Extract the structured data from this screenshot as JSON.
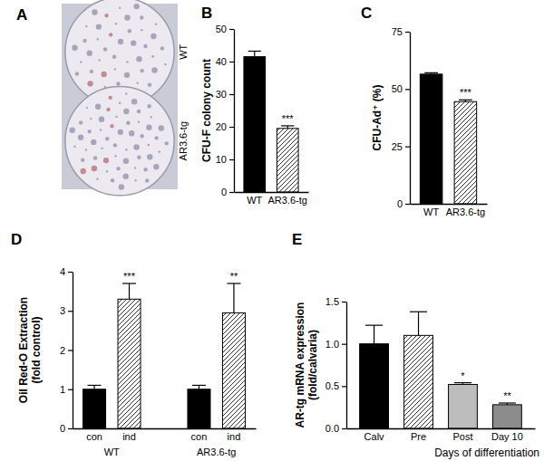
{
  "chart_data": [
    {
      "type": "image",
      "panel_label": "A",
      "labels": [
        "WT",
        "AR3.6-tg"
      ]
    },
    {
      "type": "bar",
      "panel_label": "B",
      "y_label": "CFU-F colony count",
      "categories": [
        "WT",
        "AR3.6-tg"
      ],
      "values": [
        41.5,
        19.5
      ],
      "errors": [
        1.7,
        0.8
      ],
      "significance": [
        null,
        "***"
      ],
      "colors": [
        "#000000",
        "#ffffff"
      ],
      "ylim": [
        0,
        50
      ],
      "yticks": [
        0,
        10,
        20,
        30,
        40,
        50
      ]
    },
    {
      "type": "bar",
      "panel_label": "C",
      "y_label": "CFU-Ad⁺ (%)",
      "categories": [
        "WT",
        "AR3.6-tg"
      ],
      "values": [
        56.5,
        44.5
      ],
      "errors": [
        0.6,
        0.8
      ],
      "significance": [
        null,
        "***"
      ],
      "colors": [
        "#000000",
        "#ffffff"
      ],
      "ylim": [
        0,
        75
      ],
      "yticks": [
        0,
        25,
        50,
        75
      ]
    },
    {
      "type": "bar",
      "panel_label": "D",
      "y_label": [
        "Oil Red-O Extraction",
        "(fold control)"
      ],
      "categories": [
        "con",
        "ind",
        "con",
        "ind"
      ],
      "groups": [
        "WT",
        "WT",
        "AR3.6-tg",
        "AR3.6-tg"
      ],
      "values": [
        1.0,
        3.3,
        1.0,
        2.95
      ],
      "errors": [
        0.1,
        0.4,
        0.1,
        0.75
      ],
      "significance": [
        null,
        "***",
        null,
        "**"
      ],
      "colors": [
        "#000000",
        "#ffffff",
        "#000000",
        "#ffffff"
      ],
      "ylim": [
        0,
        4
      ],
      "yticks": [
        0,
        1,
        2,
        3,
        4
      ]
    },
    {
      "type": "bar",
      "panel_label": "E",
      "y_label": [
        "AR-tg mRNA expression",
        "(fold/calvaria)"
      ],
      "x_label": "Days of differentiation",
      "categories": [
        "Calv",
        "Pre",
        "Post",
        "Day 10"
      ],
      "values": [
        1.0,
        1.1,
        0.52,
        0.28
      ],
      "errors": [
        0.22,
        0.28,
        0.02,
        0.02
      ],
      "significance": [
        null,
        null,
        "*",
        "**"
      ],
      "colors": [
        "#000000",
        "#ffffff",
        "#bdbdbd",
        "#8c8c8c"
      ],
      "ylim": [
        0,
        1.5
      ],
      "yticks": [
        {
          "value": 0,
          "label": "0.0"
        },
        {
          "value": 0.5,
          "label": "0.5"
        },
        {
          "value": 1.0,
          "label": "1.0"
        },
        {
          "value": 1.5,
          "label": "1.5"
        }
      ]
    }
  ]
}
